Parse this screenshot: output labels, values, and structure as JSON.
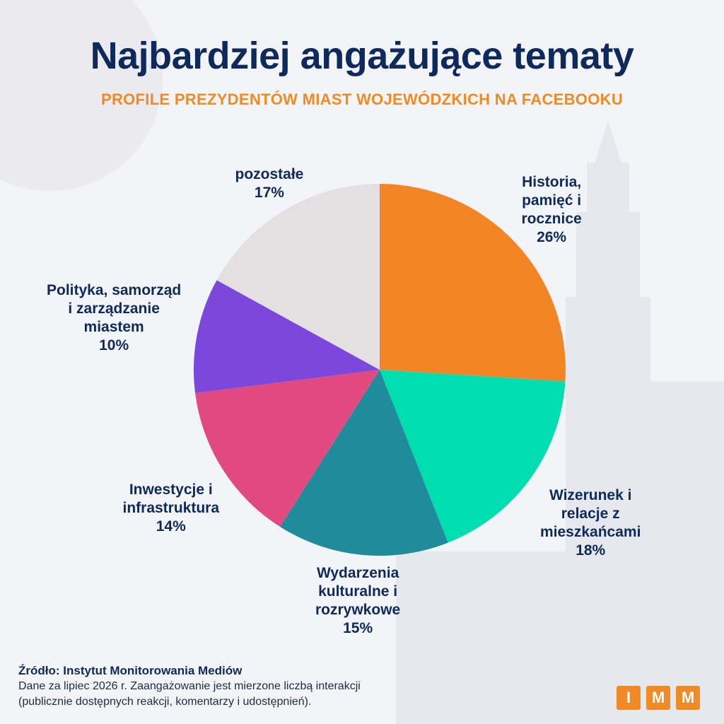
{
  "header": {
    "title": "Najbardziej angażujące tematy",
    "subtitle": "PROFILE PREZYDENTÓW MIAST WOJEWÓDZKICH NA FACEBOOKU"
  },
  "chart_data": {
    "type": "pie",
    "title": "Najbardziej angażujące tematy",
    "subtitle": "PROFILE PREZYDENTÓW MIAST WOJEWÓDZKICH NA FACEBOOKU",
    "unit": "%",
    "slices": [
      {
        "label": "Historia,\npamięć i\nrocznice",
        "value": 26,
        "value_text": "26%",
        "color": "#f48526"
      },
      {
        "label": "Wizerunek i\nrelacje z\nmieszkańcami",
        "value": 18,
        "value_text": "18%",
        "color": "#00deb0"
      },
      {
        "label": "Wydarzenia\nkulturalne i\nrozrywkowe",
        "value": 15,
        "value_text": "15%",
        "color": "#1f8c9c"
      },
      {
        "label": "Inwestycje i\ninfrastruktura",
        "value": 14,
        "value_text": "14%",
        "color": "#e04a80"
      },
      {
        "label": "Polityka, samorząd\ni zarządzanie\nmiastem",
        "value": 10,
        "value_text": "10%",
        "color": "#7c48dc"
      },
      {
        "label": "pozostałe",
        "value": 17,
        "value_text": "17%",
        "color": "#e4e0e1"
      }
    ]
  },
  "footer": {
    "source_title": "Źródło: Instytut Monitorowania Mediów",
    "note_line1": "Dane za lipiec 2026 r. Zaangażowanie jest mierzone liczbą interakcji",
    "note_line2": "(publicznie dostępnych reakcji, komentarzy i udostępnień)."
  },
  "logo": {
    "letters": [
      "I",
      "M",
      "M"
    ],
    "color": "#f08a24"
  }
}
